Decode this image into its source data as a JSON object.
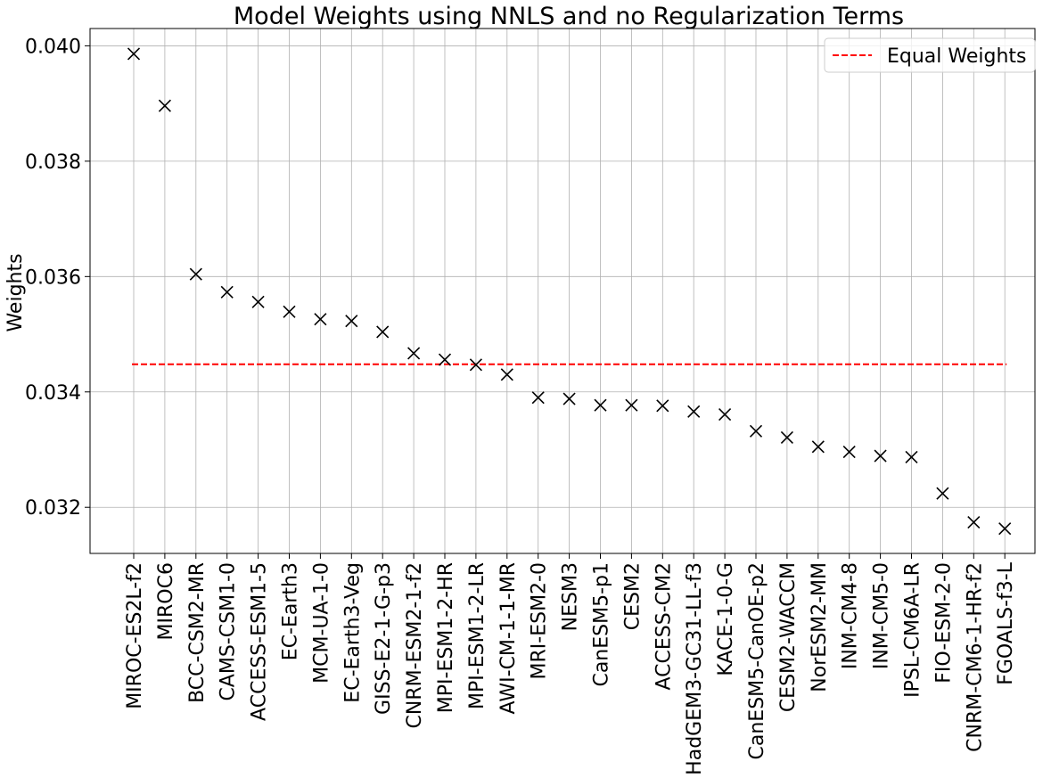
{
  "chart_data": {
    "type": "scatter",
    "title": "Model Weights using NNLS and no Regularization Terms",
    "xlabel": "",
    "ylabel": "Weights",
    "ylim": [
      0.0312,
      0.0403
    ],
    "yticks": [
      "0.032",
      "0.034",
      "0.036",
      "0.038",
      "0.040"
    ],
    "ytick_values": [
      0.032,
      0.034,
      0.036,
      0.038,
      0.04
    ],
    "grid": true,
    "legend_position": "top-right",
    "marker": "x",
    "colors": {
      "points": "#000000",
      "reference_line": "#ff0000",
      "grid": "#b0b0b0"
    },
    "categories": [
      "MIROC-ES2L-f2",
      "MIROC6",
      "BCC-CSM2-MR",
      "CAMS-CSM1-0",
      "ACCESS-ESM1-5",
      "EC-Earth3",
      "MCM-UA-1-0",
      "EC-Earth3-Veg",
      "GISS-E2-1-G-p3",
      "CNRM-ESM2-1-f2",
      "MPI-ESM1-2-HR",
      "MPI-ESM1-2-LR",
      "AWI-CM-1-1-MR",
      "MRI-ESM2-0",
      "NESM3",
      "CanESM5-p1",
      "CESM2",
      "ACCESS-CM2",
      "HadGEM3-GC31-LL-f3",
      "KACE-1-0-G",
      "CanESM5-CanOE-p2",
      "CESM2-WACCM",
      "NorESM2-MM",
      "INM-CM4-8",
      "INM-CM5-0",
      "IPSL-CM6A-LR",
      "FIO-ESM-2-0",
      "CNRM-CM6-1-HR-f2",
      "FGOALS-f3-L"
    ],
    "values": [
      0.03986,
      0.03896,
      0.03604,
      0.03573,
      0.03556,
      0.03539,
      0.03526,
      0.03523,
      0.03504,
      0.03467,
      0.03456,
      0.03447,
      0.0343,
      0.0339,
      0.03388,
      0.03377,
      0.03377,
      0.03376,
      0.03366,
      0.03361,
      0.03332,
      0.03321,
      0.03305,
      0.03296,
      0.03289,
      0.03287,
      0.03224,
      0.03174,
      0.03163
    ],
    "reference_lines": [
      {
        "name": "Equal Weights",
        "value": 0.03448,
        "style": "dashed"
      }
    ]
  }
}
